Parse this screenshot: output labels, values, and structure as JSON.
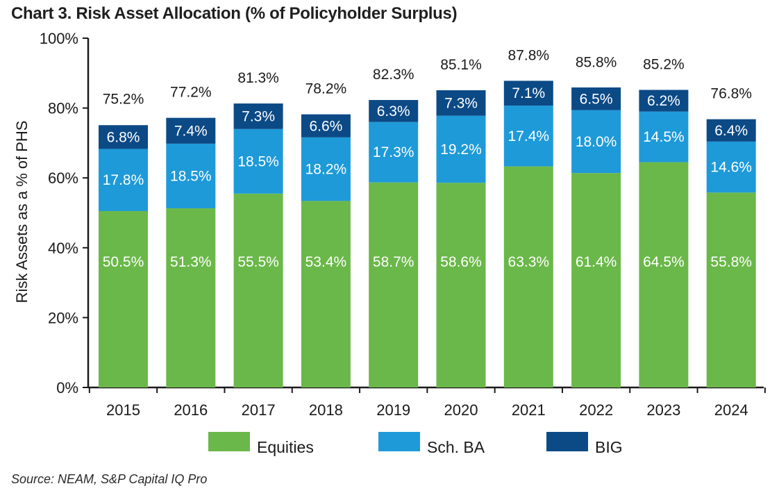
{
  "chart_data": {
    "type": "bar",
    "stacked": true,
    "title": "Chart 3. Risk Asset Allocation (% of Policyholder Surplus)",
    "ylabel": "Risk Assets as a % of PHS",
    "xlabel": "",
    "ylim": [
      0,
      100
    ],
    "yticks": [
      "0%",
      "20%",
      "40%",
      "60%",
      "80%",
      "100%"
    ],
    "categories": [
      "2015",
      "2016",
      "2017",
      "2018",
      "2019",
      "2020",
      "2021",
      "2022",
      "2023",
      "2024"
    ],
    "series": [
      {
        "name": "Equities",
        "color": "#6ab849",
        "values": [
          50.5,
          51.3,
          55.5,
          53.4,
          58.7,
          58.6,
          63.3,
          61.4,
          64.5,
          55.8
        ],
        "labels": [
          "50.5%",
          "51.3%",
          "55.5%",
          "53.4%",
          "58.7%",
          "58.6%",
          "63.3%",
          "61.4%",
          "64.5%",
          "55.8%"
        ]
      },
      {
        "name": "Sch. BA",
        "color": "#1e9ad9",
        "values": [
          17.8,
          18.5,
          18.5,
          18.2,
          17.3,
          19.2,
          17.4,
          18.0,
          14.5,
          14.6
        ],
        "labels": [
          "17.8%",
          "18.5%",
          "18.5%",
          "18.2%",
          "17.3%",
          "19.2%",
          "17.4%",
          "18.0%",
          "14.5%",
          "14.6%"
        ]
      },
      {
        "name": "BIG",
        "color": "#0c4a86",
        "values": [
          6.8,
          7.4,
          7.3,
          6.6,
          6.3,
          7.3,
          7.1,
          6.5,
          6.2,
          6.4
        ],
        "labels": [
          "6.8%",
          "7.4%",
          "7.3%",
          "6.6%",
          "6.3%",
          "7.3%",
          "7.1%",
          "6.5%",
          "6.2%",
          "6.4%"
        ]
      }
    ],
    "totals": [
      75.2,
      77.2,
      81.3,
      78.2,
      82.3,
      85.1,
      87.8,
      85.8,
      85.2,
      76.8
    ],
    "total_labels": [
      "75.2%",
      "77.2%",
      "81.3%",
      "78.2%",
      "82.3%",
      "85.1%",
      "87.8%",
      "85.8%",
      "85.2%",
      "76.8%"
    ],
    "legend": [
      "Equities",
      "Sch. BA",
      "BIG"
    ],
    "legend_position": "bottom"
  },
  "source": "Source: NEAM, S&P Capital IQ Pro"
}
